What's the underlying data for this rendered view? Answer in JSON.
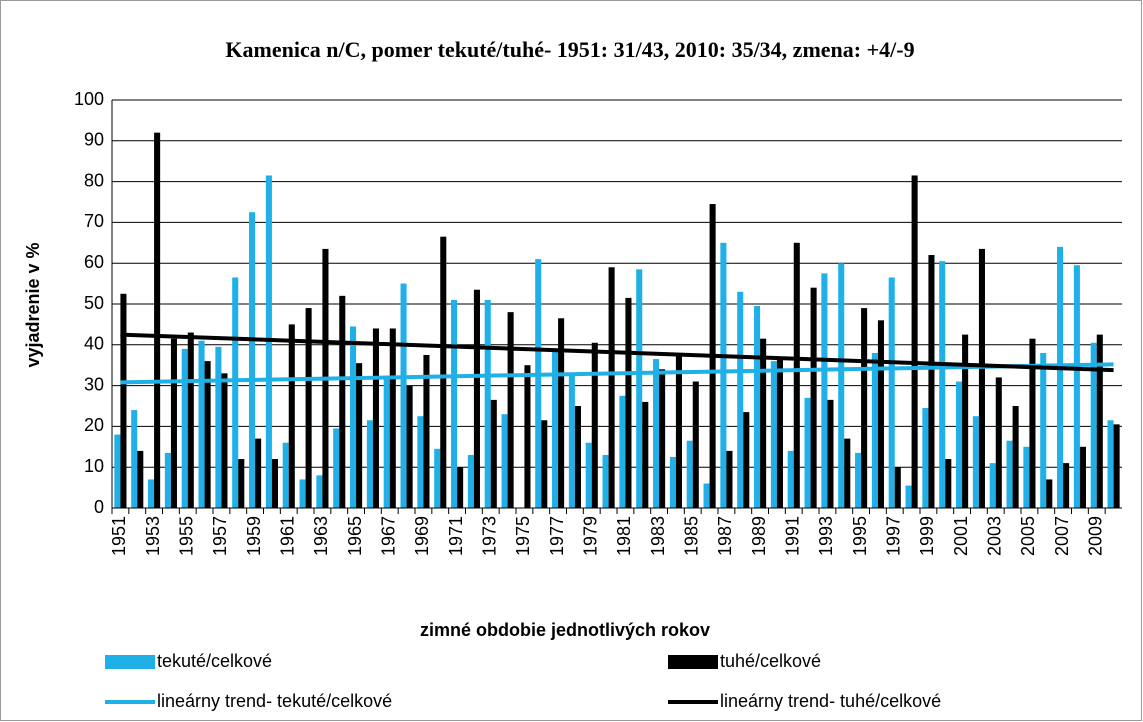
{
  "chart_data": {
    "type": "bar",
    "title": "Kamenica n/C, pomer tekuté/tuhé- 1951: 31/43, 2010: 35/34, zmena: +4/-9",
    "x_label": "zimné obdobie jednotlivých rokov",
    "y_label": "vyjadrenie v %",
    "categories": [
      "1951",
      null,
      "1953",
      null,
      "1955",
      null,
      "1957",
      null,
      "1959",
      null,
      "1961",
      null,
      "1963",
      null,
      "1965",
      null,
      "1967",
      null,
      "1969",
      null,
      "1971",
      null,
      "1973",
      null,
      "1975",
      null,
      "1977",
      null,
      "1979",
      null,
      "1981",
      null,
      "1983",
      null,
      "1985",
      null,
      "1987",
      null,
      "1989",
      null,
      "1991",
      null,
      "1993",
      null,
      "1995",
      null,
      "1997",
      null,
      "1999",
      null,
      "2001",
      null,
      "2003",
      null,
      "2005",
      null,
      "2007",
      null,
      "2009",
      null
    ],
    "series": [
      {
        "name": "tekuté/celkové",
        "color": "#1fb0e8",
        "values": [
          18,
          24,
          7,
          13.5,
          39,
          41,
          39.5,
          56.5,
          72.5,
          81.5,
          16,
          7,
          8,
          19.5,
          44.5,
          21.5,
          32,
          55,
          22.5,
          14.5,
          51,
          13,
          51,
          23,
          0,
          61,
          38.5,
          33,
          16,
          13,
          27.5,
          58.5,
          36.5,
          12.5,
          16.5,
          6,
          65,
          53,
          49.5,
          36,
          14,
          27,
          57.5,
          60,
          13.5,
          38,
          56.5,
          5.5,
          24.5,
          60.5,
          31,
          22.5,
          11,
          16.5,
          15,
          38,
          64,
          59.5,
          40.5,
          21.5
        ]
      },
      {
        "name": "tuhé/celkové",
        "color": "#000000",
        "values": [
          52.5,
          14,
          92,
          41.5,
          43,
          36,
          33,
          12,
          17,
          12,
          45,
          49,
          63.5,
          52,
          35.5,
          44,
          44,
          30,
          37.5,
          66.5,
          10,
          53.5,
          26.5,
          48,
          35,
          21.5,
          46.5,
          25,
          40.5,
          59,
          51.5,
          26,
          34,
          37.5,
          31,
          74.5,
          14,
          23.5,
          41.5,
          36.5,
          65,
          54,
          26.5,
          17,
          49,
          46,
          10,
          81.5,
          62,
          12,
          42.5,
          63.5,
          32,
          25,
          41.5,
          7,
          11,
          15,
          42.5,
          20.5
        ]
      }
    ],
    "trends": [
      {
        "name": "lineárny trend- tekuté/celkové",
        "color": "#1fb0e8",
        "values": [
          30.8,
          35.2
        ]
      },
      {
        "name": "lineárny trend- tuhé/celkové",
        "color": "#000000",
        "values": [
          42.5,
          33.8
        ]
      }
    ],
    "ylim": [
      0,
      100
    ],
    "yticks": [
      0,
      10,
      20,
      30,
      40,
      50,
      60,
      70,
      80,
      90,
      100
    ],
    "grid": true
  }
}
